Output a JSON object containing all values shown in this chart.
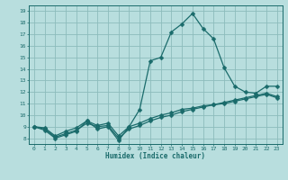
{
  "xlabel": "Humidex (Indice chaleur)",
  "xlim": [
    -0.5,
    23.5
  ],
  "ylim": [
    7.5,
    19.5
  ],
  "xticks": [
    0,
    1,
    2,
    3,
    4,
    5,
    6,
    7,
    8,
    9,
    10,
    11,
    12,
    13,
    14,
    15,
    16,
    17,
    18,
    19,
    20,
    21,
    22,
    23
  ],
  "yticks": [
    8,
    9,
    10,
    11,
    12,
    13,
    14,
    15,
    16,
    17,
    18,
    19
  ],
  "background_color": "#b8dede",
  "grid_color": "#8cbcbc",
  "line_color": "#1a6b6b",
  "tick_color": "#1a6b6b",
  "line1_x": [
    0,
    1,
    2,
    3,
    4,
    5,
    6,
    7,
    8,
    9,
    10,
    11,
    12,
    13,
    14,
    15,
    16,
    17,
    18,
    19,
    20,
    21,
    22,
    23
  ],
  "line1_y": [
    9.0,
    8.7,
    8.0,
    8.3,
    8.6,
    9.5,
    8.8,
    9.0,
    7.8,
    9.0,
    10.5,
    14.7,
    15.0,
    17.2,
    17.9,
    18.8,
    17.5,
    16.6,
    14.1,
    12.5,
    12.0,
    11.9,
    12.5,
    12.5
  ],
  "line2_x": [
    0,
    1,
    2,
    3,
    4,
    5,
    6,
    7,
    8,
    9,
    10,
    11,
    12,
    13,
    14,
    15,
    16,
    17,
    18,
    19,
    20,
    21,
    22,
    23
  ],
  "line2_y": [
    9.0,
    8.8,
    8.1,
    8.4,
    8.7,
    9.3,
    9.0,
    9.1,
    8.0,
    8.8,
    9.1,
    9.5,
    9.8,
    10.0,
    10.3,
    10.5,
    10.7,
    10.9,
    11.0,
    11.2,
    11.4,
    11.6,
    11.8,
    11.5
  ],
  "line3_x": [
    0,
    1,
    2,
    3,
    4,
    5,
    6,
    7,
    8,
    9,
    10,
    11,
    12,
    13,
    14,
    15,
    16,
    17,
    18,
    19,
    20,
    21,
    22,
    23
  ],
  "line3_y": [
    9.0,
    8.9,
    8.2,
    8.6,
    8.9,
    9.5,
    9.1,
    9.3,
    8.2,
    9.0,
    9.3,
    9.7,
    10.0,
    10.2,
    10.5,
    10.6,
    10.8,
    10.9,
    11.1,
    11.3,
    11.5,
    11.7,
    11.9,
    11.6
  ],
  "marker_size": 2.5,
  "line_width": 0.9
}
